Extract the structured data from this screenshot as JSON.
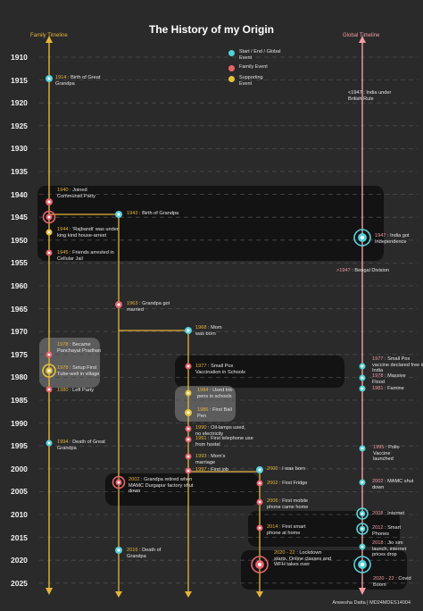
{
  "title": "The History of my Origin",
  "family_timeline_label": "Family Timeline",
  "global_timeline_label": "Global Timeline",
  "footer": "Anwesha Datta | MD24MDES14004",
  "legend": [
    {
      "label": "Start / End / Global Event",
      "color": "#55d0d8"
    },
    {
      "label": "Family Event",
      "color": "#e8636c"
    },
    {
      "label": "Supporting Event",
      "color": "#e5c23a"
    }
  ],
  "colors": {
    "family_line": "#e5b53a",
    "global_line": "#f49aa5",
    "start_end": "#55d0d8",
    "family_event": "#e8636c",
    "supporting_event": "#e5c23a"
  },
  "years": [
    "1910",
    "1915",
    "1920",
    "1925",
    "1930",
    "1935",
    "1940",
    "1945",
    "1950",
    "1955",
    "1960",
    "1965",
    "1970",
    "1975",
    "1980",
    "1985",
    "1990",
    "1995",
    "2000",
    "2005",
    "2010",
    "2015",
    "2020",
    "2025"
  ],
  "events": [
    {
      "year": "1914",
      "text": "Birth of Great Grandpa",
      "color": "yellow"
    },
    {
      "year": "1940",
      "text": "Joined Communist Party",
      "color": "yellow"
    },
    {
      "year": "1943",
      "text": "Birth of Grandpa",
      "color": "yellow"
    },
    {
      "year": "1944",
      "text": "'Rajbandi' was under king kind house-arrest",
      "color": "yellow"
    },
    {
      "year": "1945",
      "text": "Friends arrested in Cellular Jail",
      "color": "yellow"
    },
    {
      "year": "<1947",
      "text": "India under British Rule",
      "color": "light"
    },
    {
      "year": "1947",
      "text": "India got Independence",
      "color": "pink"
    },
    {
      "year": ">1947",
      "text": "Bengal Division",
      "color": "pink"
    },
    {
      "year": "1963",
      "text": "Grandpa got married",
      "color": "yellow"
    },
    {
      "year": "1968",
      "text": "Mom was born",
      "color": "yellow"
    },
    {
      "year": "1978",
      "text": "Became Panchayat Pradhan",
      "color": "yellow"
    },
    {
      "year": "1978",
      "text": "Setup First Tube-well in village",
      "color": "yellow"
    },
    {
      "year": "1980",
      "text": "Left Party",
      "color": "yellow"
    },
    {
      "year": "1977",
      "text": "Small Pox Vaccination in Schools",
      "color": "yellow"
    },
    {
      "year": "1977",
      "text": "Small Pox vaccine declared free in India",
      "color": "pink"
    },
    {
      "year": "1978",
      "text": "Massive Flood",
      "color": "pink"
    },
    {
      "year": "1981",
      "text": "Famine",
      "color": "pink"
    },
    {
      "year": "1984",
      "text": "Used Ink-pens in schools",
      "color": "yellow"
    },
    {
      "year": "1986",
      "text": "First Ball Pen",
      "color": "yellow"
    },
    {
      "year": "1990",
      "text": "Oil-lamps used, no electricity",
      "color": "yellow"
    },
    {
      "year": "1991",
      "text": "First telephone use from hostel",
      "color": "yellow"
    },
    {
      "year": "1993",
      "text": "Mom's marriage",
      "color": "yellow"
    },
    {
      "year": "1997",
      "text": "First job",
      "color": "yellow"
    },
    {
      "year": "1994",
      "text": "Death of Great Grandpa",
      "color": "yellow"
    },
    {
      "year": "1995",
      "text": "Polio Vaccine launched",
      "color": "pink"
    },
    {
      "year": "2000",
      "text": "I was born",
      "color": "yellow"
    },
    {
      "year": "2002",
      "text": "Grandpa retired when MAMC Durgapur factory shut down",
      "color": "yellow"
    },
    {
      "year": "2002",
      "text": "First Fridge",
      "color": "yellow"
    },
    {
      "year": "2002",
      "text": "MAMC shut down",
      "color": "pink"
    },
    {
      "year": "2006",
      "text": "First mobile phone came home",
      "color": "yellow"
    },
    {
      "year": "2008",
      "text": "Internet",
      "color": "pink"
    },
    {
      "year": "2012",
      "text": "Smart Phones",
      "color": "pink"
    },
    {
      "year": "2014",
      "text": "First smart phone at home",
      "color": "yellow"
    },
    {
      "year": "2016",
      "text": "Death of Grandpa",
      "color": "yellow"
    },
    {
      "year": "2018",
      "text": "Jio sim launch, internet prices drop",
      "color": "pink"
    },
    {
      "year": "2020 - 22",
      "text": "Lockdown starts, Online classes and WFH takes over",
      "color": "yellow"
    },
    {
      "year": "2020 - 22",
      "text": "Covid Boom",
      "color": "pink"
    }
  ]
}
